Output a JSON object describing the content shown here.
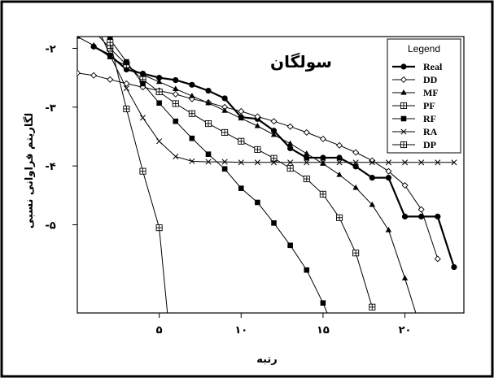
{
  "chart_data": {
    "type": "line",
    "title": "سولگان",
    "xlabel": "رتبه",
    "ylabel": "لگاریتم فراوانی نسبی",
    "xlim": [
      0,
      23.6
    ],
    "ylim": [
      -6.5,
      -1.8
    ],
    "x_ticks": [
      {
        "value": 5,
        "label": "۵"
      },
      {
        "value": 10,
        "label": "۱۰"
      },
      {
        "value": 15,
        "label": "۱۵"
      },
      {
        "value": 20,
        "label": "۲۰"
      }
    ],
    "y_ticks": [
      {
        "value": -2,
        "label": "-۲"
      },
      {
        "value": -3,
        "label": "-۳"
      },
      {
        "value": -4,
        "label": "-۴"
      },
      {
        "value": -5,
        "label": "-۵"
      }
    ],
    "legend_title": "Legend",
    "legend_position": "top-right",
    "series": [
      {
        "name": "Real",
        "marker": "filled-circle",
        "line_width": 2.2,
        "x": [
          1,
          2,
          3,
          4,
          5,
          6,
          7,
          8,
          9,
          10,
          11,
          12,
          13,
          14,
          15,
          16,
          17,
          18,
          19,
          20,
          21,
          22,
          23
        ],
        "y": [
          -1.97,
          -2.12,
          -2.36,
          -2.43,
          -2.5,
          -2.54,
          -2.62,
          -2.72,
          -2.85,
          -3.17,
          -3.2,
          -3.4,
          -3.7,
          -3.86,
          -3.86,
          -3.86,
          -4.01,
          -4.2,
          -4.2,
          -4.86,
          -4.86,
          -4.86,
          -5.72
        ]
      },
      {
        "name": "DD",
        "marker": "open-diamond",
        "line_width": 1,
        "x": [
          0,
          1,
          2,
          3,
          4,
          5,
          6,
          7,
          8,
          9,
          10,
          11,
          12,
          13,
          14,
          15,
          16,
          17,
          18,
          19,
          20,
          21,
          22
        ],
        "y": [
          -2.42,
          -2.46,
          -2.53,
          -2.6,
          -2.66,
          -2.72,
          -2.78,
          -2.86,
          -2.92,
          -3.0,
          -3.07,
          -3.16,
          -3.24,
          -3.33,
          -3.43,
          -3.54,
          -3.65,
          -3.77,
          -3.91,
          -4.09,
          -4.33,
          -4.74,
          -5.58
        ]
      },
      {
        "name": "MF",
        "marker": "filled-triangle",
        "line_width": 1,
        "x": [
          0,
          1,
          2,
          3,
          4,
          5,
          6,
          7,
          8,
          9,
          10,
          11,
          12,
          13,
          14,
          15,
          16,
          17,
          18,
          19,
          20,
          21
        ],
        "y": [
          -1.8,
          -1.95,
          -2.15,
          -2.3,
          -2.45,
          -2.57,
          -2.69,
          -2.81,
          -2.93,
          -3.06,
          -3.19,
          -3.32,
          -3.47,
          -3.62,
          -3.79,
          -3.96,
          -4.15,
          -4.37,
          -4.66,
          -5.09,
          -5.91,
          -6.8
        ]
      },
      {
        "name": "PF",
        "marker": "open-square-plus",
        "line_width": 1,
        "x": [
          1,
          2,
          3,
          4,
          5,
          6,
          7,
          8,
          9,
          10,
          11,
          12,
          13,
          14,
          15,
          16,
          17,
          18
        ],
        "y": [
          -1.7,
          -2.0,
          -2.28,
          -2.53,
          -2.74,
          -2.94,
          -3.11,
          -3.28,
          -3.43,
          -3.58,
          -3.72,
          -3.87,
          -4.04,
          -4.22,
          -4.48,
          -4.88,
          -5.48,
          -6.4
        ]
      },
      {
        "name": "RF",
        "marker": "filled-square",
        "line_width": 1,
        "x": [
          1,
          2,
          3,
          4,
          5,
          6,
          7,
          8,
          9,
          10,
          11,
          12,
          13,
          14,
          15,
          16
        ],
        "y": [
          -1.5,
          -1.85,
          -2.23,
          -2.6,
          -2.93,
          -3.24,
          -3.53,
          -3.8,
          -4.05,
          -4.38,
          -4.62,
          -4.97,
          -5.35,
          -5.77,
          -6.33,
          -7.0
        ]
      },
      {
        "name": "RA",
        "marker": "cross",
        "line_width": 1,
        "x": [
          1,
          2,
          3,
          4,
          5,
          6,
          7,
          8,
          9,
          10,
          11,
          12,
          13,
          14,
          15,
          16,
          17,
          18,
          19,
          20,
          21,
          22,
          23
        ],
        "y": [
          -1.5,
          -2.12,
          -2.68,
          -3.18,
          -3.58,
          -3.84,
          -3.92,
          -3.93,
          -3.93,
          -3.94,
          -3.94,
          -3.94,
          -3.94,
          -3.94,
          -3.94,
          -3.94,
          -3.94,
          -3.94,
          -3.94,
          -3.94,
          -3.94,
          -3.94,
          -3.94
        ]
      },
      {
        "name": "DP",
        "marker": "open-square-plus",
        "line_width": 1,
        "x": [
          1.5,
          2,
          3,
          4,
          5,
          5.5
        ],
        "y": [
          -1.5,
          -1.9,
          -3.03,
          -4.09,
          -5.05,
          -6.5
        ]
      }
    ]
  }
}
